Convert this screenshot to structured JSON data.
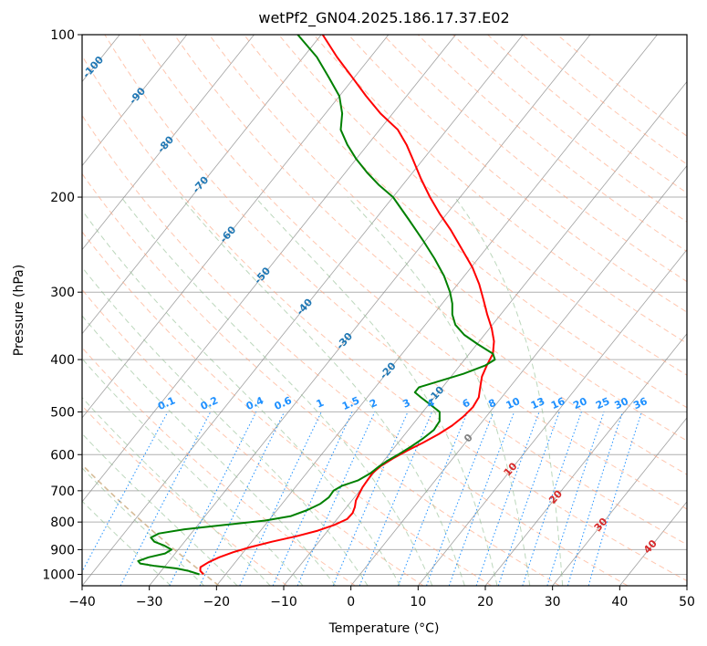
{
  "chart_data": {
    "type": "line",
    "title": "wetPf2_GN04.2025.186.17.37.E02",
    "xlabel": "Temperature (°C)",
    "ylabel": "Pressure (hPa)",
    "xlim": [
      -40,
      50
    ],
    "ylim": [
      1050,
      100
    ],
    "y_scale": "log",
    "x_ticks": [
      -40,
      -30,
      -20,
      -10,
      0,
      10,
      20,
      30,
      40,
      50
    ],
    "y_ticks": [
      1000,
      900,
      800,
      700,
      600,
      500,
      400,
      300,
      200,
      100
    ],
    "grid": true,
    "series": [
      {
        "role": "temperature",
        "color": "#ff0000",
        "points": [
          [
            1000,
            -23.3
          ],
          [
            985,
            -24.2
          ],
          [
            970,
            -24.6
          ],
          [
            950,
            -24.0
          ],
          [
            930,
            -23.0
          ],
          [
            910,
            -21.5
          ],
          [
            890,
            -19.5
          ],
          [
            870,
            -17.0
          ],
          [
            850,
            -14.0
          ],
          [
            830,
            -11.5
          ],
          [
            810,
            -9.7
          ],
          [
            790,
            -8.5
          ],
          [
            770,
            -8.4
          ],
          [
            750,
            -8.8
          ],
          [
            730,
            -9.4
          ],
          [
            710,
            -9.7
          ],
          [
            690,
            -10.0
          ],
          [
            670,
            -10.1
          ],
          [
            650,
            -10.2
          ],
          [
            630,
            -9.8
          ],
          [
            610,
            -8.9
          ],
          [
            590,
            -7.7
          ],
          [
            570,
            -6.3
          ],
          [
            550,
            -5.0
          ],
          [
            530,
            -4.0
          ],
          [
            510,
            -3.4
          ],
          [
            490,
            -3.1
          ],
          [
            470,
            -3.4
          ],
          [
            450,
            -4.4
          ],
          [
            430,
            -5.4
          ],
          [
            410,
            -6.0
          ],
          [
            390,
            -6.5
          ],
          [
            370,
            -7.8
          ],
          [
            350,
            -9.7
          ],
          [
            330,
            -12.0
          ],
          [
            310,
            -14.3
          ],
          [
            290,
            -16.8
          ],
          [
            270,
            -19.8
          ],
          [
            250,
            -23.5
          ],
          [
            230,
            -27.5
          ],
          [
            215,
            -31.0
          ],
          [
            200,
            -34.5
          ],
          [
            185,
            -38.0
          ],
          [
            170,
            -41.6
          ],
          [
            160,
            -44.2
          ],
          [
            150,
            -47.3
          ],
          [
            140,
            -51.8
          ],
          [
            130,
            -56.0
          ],
          [
            120,
            -60.3
          ],
          [
            110,
            -65.0
          ],
          [
            100,
            -69.8
          ]
        ]
      },
      {
        "role": "dewpoint",
        "color": "#008000",
        "points": [
          [
            1000,
            -23.9
          ],
          [
            985,
            -26.0
          ],
          [
            975,
            -28.0
          ],
          [
            965,
            -31.5
          ],
          [
            955,
            -34.0
          ],
          [
            945,
            -34.6
          ],
          [
            930,
            -33.5
          ],
          [
            915,
            -31.5
          ],
          [
            900,
            -31.0
          ],
          [
            885,
            -32.5
          ],
          [
            870,
            -34.5
          ],
          [
            855,
            -35.5
          ],
          [
            840,
            -34.8
          ],
          [
            825,
            -31.5
          ],
          [
            810,
            -26.0
          ],
          [
            795,
            -20.5
          ],
          [
            780,
            -17.2
          ],
          [
            760,
            -15.5
          ],
          [
            740,
            -14.3
          ],
          [
            720,
            -13.8
          ],
          [
            700,
            -13.9
          ],
          [
            685,
            -13.2
          ],
          [
            670,
            -11.5
          ],
          [
            650,
            -10.5
          ],
          [
            630,
            -10.0
          ],
          [
            615,
            -9.4
          ],
          [
            600,
            -8.6
          ],
          [
            580,
            -7.6
          ],
          [
            560,
            -6.8
          ],
          [
            540,
            -6.2
          ],
          [
            520,
            -6.4
          ],
          [
            500,
            -7.5
          ],
          [
            485,
            -9.7
          ],
          [
            470,
            -12.0
          ],
          [
            460,
            -13.5
          ],
          [
            450,
            -13.5
          ],
          [
            440,
            -11.5
          ],
          [
            425,
            -8.5
          ],
          [
            410,
            -6.2
          ],
          [
            400,
            -5.5
          ],
          [
            390,
            -6.5
          ],
          [
            375,
            -9.8
          ],
          [
            360,
            -13.0
          ],
          [
            345,
            -15.5
          ],
          [
            330,
            -17.2
          ],
          [
            315,
            -18.5
          ],
          [
            300,
            -20.2
          ],
          [
            280,
            -23.0
          ],
          [
            260,
            -26.5
          ],
          [
            240,
            -30.5
          ],
          [
            220,
            -35.0
          ],
          [
            200,
            -40.0
          ],
          [
            190,
            -43.5
          ],
          [
            180,
            -46.8
          ],
          [
            170,
            -50.0
          ],
          [
            160,
            -53.0
          ],
          [
            150,
            -55.8
          ],
          [
            140,
            -57.5
          ],
          [
            130,
            -60.0
          ],
          [
            120,
            -63.8
          ],
          [
            110,
            -68.0
          ],
          [
            100,
            -73.5
          ]
        ]
      }
    ],
    "dry_adiabats_K": [
      250,
      260,
      270,
      280,
      290,
      300,
      310,
      320,
      330,
      340,
      350,
      360,
      370,
      380,
      390,
      400,
      410,
      420,
      430,
      440,
      450,
      460
    ],
    "moist_adiabats_C": [
      -30,
      -25,
      -20,
      -15,
      -10,
      -5,
      0,
      5,
      10,
      15,
      20,
      25,
      30
    ],
    "isotherm_labels": [
      {
        "p": 115,
        "t": -100,
        "text": "-100"
      },
      {
        "p": 130,
        "t": -90,
        "text": "-90"
      },
      {
        "p": 160,
        "t": -80,
        "text": "-80"
      },
      {
        "p": 190,
        "t": -70,
        "text": "-70"
      },
      {
        "p": 235,
        "t": -60,
        "text": "-60"
      },
      {
        "p": 280,
        "t": -50,
        "text": "-50"
      },
      {
        "p": 320,
        "t": -40,
        "text": "-40"
      },
      {
        "p": 370,
        "t": -30,
        "text": "-30"
      },
      {
        "p": 420,
        "t": -20,
        "text": "-20"
      },
      {
        "p": 465,
        "t": -10,
        "text": "-10"
      },
      {
        "p": 560,
        "t": 0,
        "text": "0"
      },
      {
        "p": 640,
        "t": 10,
        "text": "10"
      },
      {
        "p": 720,
        "t": 20,
        "text": "20"
      },
      {
        "p": 810,
        "t": 30,
        "text": "30"
      },
      {
        "p": 890,
        "t": 40,
        "text": "40"
      }
    ],
    "mixing_ratios": [
      {
        "w": 0.1,
        "text": "0.1"
      },
      {
        "w": 0.2,
        "text": "0.2"
      },
      {
        "w": 0.4,
        "text": "0.4"
      },
      {
        "w": 0.6,
        "text": "0.6"
      },
      {
        "w": 1,
        "text": "1"
      },
      {
        "w": 1.5,
        "text": "1.5"
      },
      {
        "w": 2,
        "text": "2"
      },
      {
        "w": 3,
        "text": "3"
      },
      {
        "w": 4,
        "text": "4"
      },
      {
        "w": 6,
        "text": "6"
      },
      {
        "w": 8,
        "text": "8"
      },
      {
        "w": 10,
        "text": "10"
      },
      {
        "w": 13,
        "text": "13"
      },
      {
        "w": 16,
        "text": "16"
      },
      {
        "w": 20,
        "text": "20"
      },
      {
        "w": 25,
        "text": "25"
      },
      {
        "w": 30,
        "text": "30"
      },
      {
        "w": 36,
        "text": "36"
      }
    ],
    "colors": {
      "temperature": "#ff0000",
      "dewpoint": "#008000",
      "isotherm": "#808080",
      "isobar": "#b0b0b0",
      "dry_adiabat": "#ffa07a",
      "moist_adiabat": "#8fbc8f",
      "mixing_ratio": "#1e90ff",
      "iso_label_cold": "#1f77b4",
      "iso_label_zero": "#808080",
      "iso_label_warm": "#d62728",
      "mix_label": "#1e90ff",
      "boundary_adiabat": "#d2b48c"
    }
  }
}
